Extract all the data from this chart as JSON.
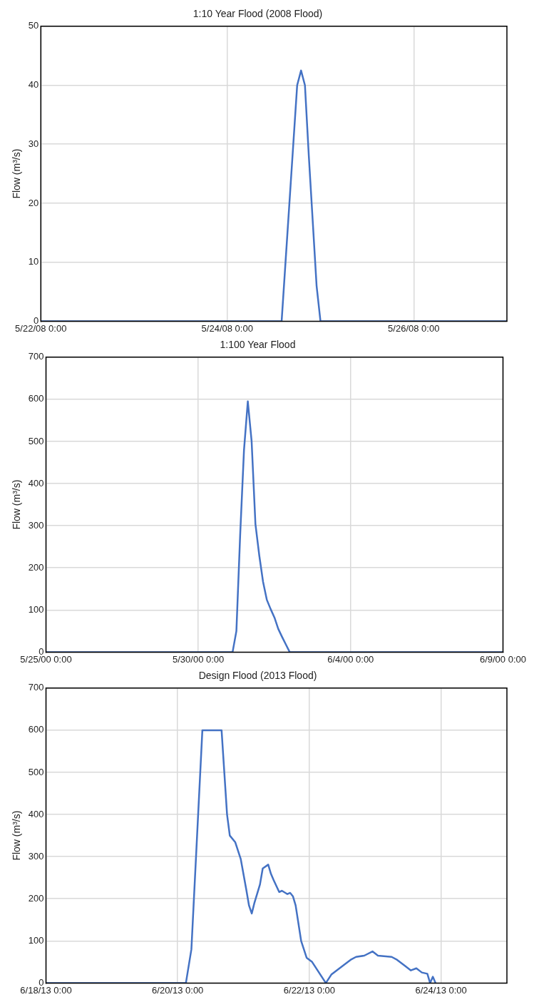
{
  "chart_data": [
    {
      "type": "line",
      "title": "1:10 Year Flood (2008 Flood)",
      "ylabel": "Flow (m³/s)",
      "color": "#4472c4",
      "grid": true,
      "x": [
        "2008-05-22T00:00",
        "2008-05-24T14:00",
        "2008-05-24T15:00",
        "2008-05-24T16:00",
        "2008-05-24T17:00",
        "2008-05-24T18:00",
        "2008-05-24T19:00",
        "2008-05-24T20:00",
        "2008-05-24T21:00",
        "2008-05-24T22:00",
        "2008-05-24T23:00",
        "2008-05-25T00:00",
        "2008-05-27T00:00"
      ],
      "values": [
        0,
        0,
        10,
        20,
        30,
        40,
        42.5,
        40,
        28,
        17,
        6,
        0,
        0
      ],
      "xlim": [
        "2008-05-22T00:00",
        "2008-05-27T00:00"
      ],
      "xticks": [
        {
          "value": "2008-05-22T00:00",
          "label": "5/22/08 0:00"
        },
        {
          "value": "2008-05-24T00:00",
          "label": "5/24/08 0:00"
        },
        {
          "value": "2008-05-26T00:00",
          "label": "5/26/08 0:00"
        }
      ],
      "ylim": [
        0,
        50
      ],
      "yticks": [
        0,
        10,
        20,
        30,
        40,
        50
      ]
    },
    {
      "type": "line",
      "title": "1:100 Year Flood",
      "ylabel": "Flow (m³/s)",
      "color": "#4472c4",
      "grid": true,
      "x": [
        "2000-05-25T00:00",
        "2000-05-31T03:00",
        "2000-05-31T06:00",
        "2000-05-31T09:00",
        "2000-05-31T12:00",
        "2000-05-31T15:00",
        "2000-05-31T18:00",
        "2000-05-31T21:00",
        "2000-06-01T00:00",
        "2000-06-01T03:00",
        "2000-06-01T06:00",
        "2000-06-01T09:00",
        "2000-06-01T12:00",
        "2000-06-01T15:00",
        "2000-06-01T18:00",
        "2000-06-01T21:00",
        "2000-06-02T00:00",
        "2000-06-09T00:00"
      ],
      "values": [
        0,
        0,
        50,
        280,
        480,
        595,
        500,
        304,
        230,
        167,
        124,
        102,
        82,
        55,
        36,
        18,
        0,
        0
      ],
      "xlim": [
        "2000-05-25T00:00",
        "2000-06-09T00:00"
      ],
      "xticks": [
        {
          "value": "2000-05-25T00:00",
          "label": "5/25/00 0:00"
        },
        {
          "value": "2000-05-30T00:00",
          "label": "5/30/00 0:00"
        },
        {
          "value": "2000-06-04T00:00",
          "label": "6/4/00 0:00"
        },
        {
          "value": "2000-06-09T00:00",
          "label": "6/9/00 0:00"
        }
      ],
      "ylim": [
        0,
        700
      ],
      "yticks": [
        0,
        100,
        200,
        300,
        400,
        500,
        600,
        700
      ]
    },
    {
      "type": "line",
      "title": "Design Flood (2013 Flood)",
      "ylabel": "Flow (m³/s)",
      "color": "#4472c4",
      "grid": true,
      "x": [
        "2013-06-18T00:00",
        "2013-06-20T03:00",
        "2013-06-20T05:00",
        "2013-06-20T07:00",
        "2013-06-20T09:00",
        "2013-06-20T16:00",
        "2013-06-20T18:00",
        "2013-06-20T19:00",
        "2013-06-20T21:00",
        "2013-06-20T23:00",
        "2013-06-21T01:00",
        "2013-06-21T02:00",
        "2013-06-21T03:00",
        "2013-06-21T04:00",
        "2013-06-21T06:00",
        "2013-06-21T07:00",
        "2013-06-21T09:00",
        "2013-06-21T10:00",
        "2013-06-21T11:00",
        "2013-06-21T13:00",
        "2013-06-21T14:00",
        "2013-06-21T16:00",
        "2013-06-21T17:00",
        "2013-06-21T18:00",
        "2013-06-21T19:00",
        "2013-06-21T21:00",
        "2013-06-21T23:00",
        "2013-06-22T01:00",
        "2013-06-22T06:00",
        "2013-06-22T08:00",
        "2013-06-22T12:00",
        "2013-06-22T15:00",
        "2013-06-22T17:00",
        "2013-06-22T20:00",
        "2013-06-22T23:00",
        "2013-06-23T01:00",
        "2013-06-23T06:00",
        "2013-06-23T08:00",
        "2013-06-23T11:00",
        "2013-06-23T13:00",
        "2013-06-23T15:00",
        "2013-06-23T17:00",
        "2013-06-23T19:00",
        "2013-06-23T20:00",
        "2013-06-23T21:00",
        "2013-06-23T22:00"
      ],
      "values": [
        0,
        0,
        80,
        340,
        600,
        600,
        400,
        350,
        334,
        294,
        222,
        184,
        165,
        191,
        234,
        272,
        281,
        259,
        244,
        216,
        219,
        211,
        214,
        206,
        184,
        100,
        60,
        50,
        0,
        20,
        40,
        55,
        62,
        65,
        75,
        65,
        62,
        55,
        40,
        30,
        35,
        25,
        22,
        0,
        15,
        0
      ],
      "xlim": [
        "2013-06-18T00:00",
        "2013-06-25T00:00"
      ],
      "xticks": [
        {
          "value": "2013-06-18T00:00",
          "label": "6/18/13 0:00"
        },
        {
          "value": "2013-06-20T00:00",
          "label": "6/20/13 0:00"
        },
        {
          "value": "2013-06-22T00:00",
          "label": "6/22/13 0:00"
        },
        {
          "value": "2013-06-24T00:00",
          "label": "6/24/13 0:00"
        }
      ],
      "ylim": [
        0,
        700
      ],
      "yticks": [
        0,
        100,
        200,
        300,
        400,
        500,
        600,
        700
      ]
    }
  ]
}
